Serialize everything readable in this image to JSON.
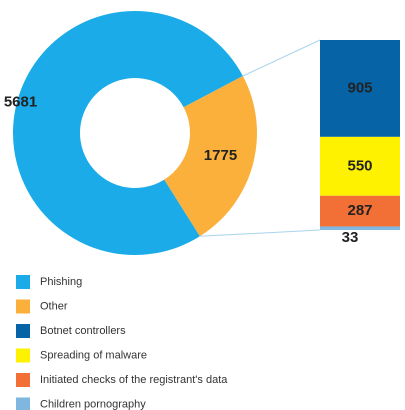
{
  "chart_data": {
    "type": "pie",
    "categories": [
      "Phishing",
      "Other"
    ],
    "values": [
      5681,
      1775
    ],
    "colors": [
      "#1aabe8",
      "#fbb03b"
    ],
    "breakdown": {
      "categories": [
        "Botnet controllers",
        "Spreading of malware",
        "Initiated checks of the registrant's data",
        "Children pornography"
      ],
      "values": [
        905,
        550,
        287,
        33
      ],
      "colors": [
        "#0563a6",
        "#fff200",
        "#f26f35",
        "#7fb7e0"
      ]
    }
  }
}
